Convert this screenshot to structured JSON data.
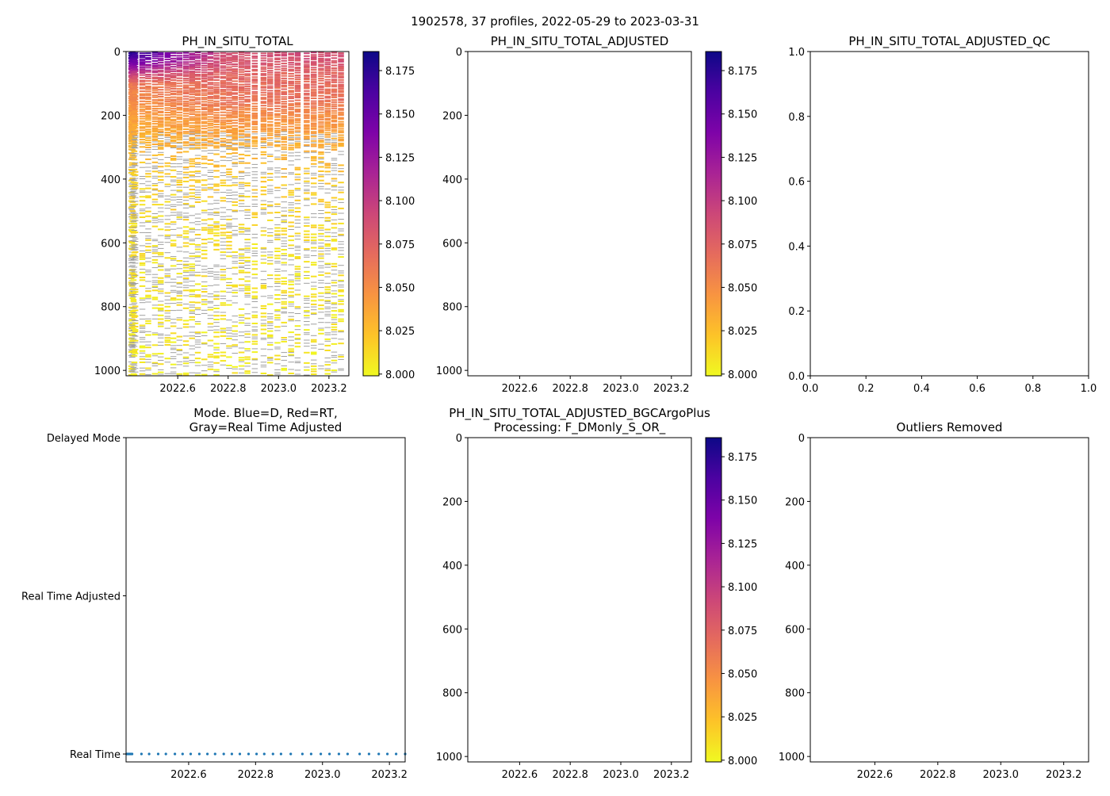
{
  "figure_title": "1902578, 37 profiles, 2022-05-29 to 2023-03-31",
  "colors": {
    "axis": "#000000",
    "mode_points": "#1f77b4",
    "qc_gray": "#a0a0a0"
  },
  "chart_data": [
    {
      "id": "raw",
      "type": "heatmap",
      "title": "PH_IN_SITU_TOTAL",
      "xlim": [
        2022.395,
        2023.279
      ],
      "ylim": [
        1017,
        0
      ],
      "xticks": [
        "2022.6",
        "2022.8",
        "2023.0",
        "2023.2"
      ],
      "xtick_values": [
        2022.6,
        2022.8,
        2023.0,
        2023.2
      ],
      "yticks": [
        "0",
        "200",
        "400",
        "600",
        "800",
        "1000"
      ],
      "ytick_values": [
        0,
        200,
        400,
        600,
        800,
        1000
      ],
      "colorbar": {
        "range": [
          7.999,
          8.186
        ],
        "colormap": "plasma_r",
        "ticks": [
          "8.000",
          "8.025",
          "8.050",
          "8.075",
          "8.100",
          "8.125",
          "8.150",
          "8.175"
        ],
        "tick_values": [
          8.0,
          8.025,
          8.05,
          8.075,
          8.1,
          8.125,
          8.15,
          8.175
        ]
      },
      "profile_dates": [
        2022.415,
        2022.418,
        2022.42,
        2022.424,
        2022.427,
        2022.431,
        2022.459,
        2022.482,
        2022.509,
        2022.532,
        2022.559,
        2022.582,
        2022.606,
        2022.632,
        2022.656,
        2022.679,
        2022.705,
        2022.729,
        2022.753,
        2022.779,
        2022.803,
        2022.826,
        2022.852,
        2022.876,
        2022.905,
        2022.94,
        2022.966,
        2022.995,
        2023.021,
        2023.049,
        2023.075,
        2023.111,
        2023.139,
        2023.168,
        2023.194,
        2023.22,
        2023.247
      ],
      "mean_profile": {
        "depth": [
          0,
          30,
          60,
          100,
          150,
          200,
          280,
          400,
          600,
          1000
        ],
        "ph_early": [
          8.18,
          8.15,
          8.11,
          8.06,
          8.05,
          8.04,
          8.03,
          8.015,
          8.01,
          8.005
        ],
        "ph_late": [
          8.09,
          8.085,
          8.075,
          8.07,
          8.065,
          8.05,
          8.035,
          8.02,
          8.01,
          8.005
        ]
      }
    },
    {
      "id": "adj",
      "type": "heatmap",
      "title": "PH_IN_SITU_TOTAL_ADJUSTED",
      "xlim": [
        2022.395,
        2023.279
      ],
      "ylim": [
        1017,
        0
      ],
      "xticks": [
        "2022.6",
        "2022.8",
        "2023.0",
        "2023.2"
      ],
      "xtick_values": [
        2022.6,
        2022.8,
        2023.0,
        2023.2
      ],
      "yticks": [
        "0",
        "200",
        "400",
        "600",
        "800",
        "1000"
      ],
      "ytick_values": [
        0,
        200,
        400,
        600,
        800,
        1000
      ],
      "colorbar": {
        "range": [
          7.999,
          8.186
        ],
        "colormap": "plasma_r",
        "ticks": [
          "8.000",
          "8.025",
          "8.050",
          "8.075",
          "8.100",
          "8.125",
          "8.150",
          "8.175"
        ],
        "tick_values": [
          8.0,
          8.025,
          8.05,
          8.075,
          8.1,
          8.125,
          8.15,
          8.175
        ]
      }
    },
    {
      "id": "qc",
      "type": "scatter",
      "title": "PH_IN_SITU_TOTAL_ADJUSTED_QC",
      "xlim": [
        0,
        1
      ],
      "ylim": [
        0,
        1
      ],
      "xticks": [
        "0.0",
        "0.2",
        "0.4",
        "0.6",
        "0.8",
        "1.0"
      ],
      "xtick_values": [
        0,
        0.2,
        0.4,
        0.6,
        0.8,
        1.0
      ],
      "yticks": [
        "0.0",
        "0.2",
        "0.4",
        "0.6",
        "0.8",
        "1.0"
      ],
      "ytick_values": [
        0,
        0.2,
        0.4,
        0.6,
        0.8,
        1.0
      ]
    },
    {
      "id": "mode",
      "type": "scatter",
      "title": "Mode. Blue=D, Red=RT,",
      "title2": "Gray=Real Time Adjusted",
      "xlim": [
        2022.413,
        2023.247
      ],
      "ylim": [
        2.05,
        0
      ],
      "xticks": [
        "2022.6",
        "2022.8",
        "2023.0",
        "2023.2"
      ],
      "xtick_values": [
        2022.6,
        2022.8,
        2023.0,
        2023.2
      ],
      "yticks": [
        "Delayed Mode",
        "Real Time Adjusted",
        "Real Time"
      ],
      "ytick_values": [
        0,
        1,
        2
      ],
      "points_mode_value": 2
    },
    {
      "id": "bgc",
      "type": "heatmap",
      "title": "PH_IN_SITU_TOTAL_ADJUSTED_BGCArgoPlus",
      "title2": "Processing: F_DMonly_S_OR_",
      "xlim": [
        2022.395,
        2023.279
      ],
      "ylim": [
        1017,
        0
      ],
      "xticks": [
        "2022.6",
        "2022.8",
        "2023.0",
        "2023.2"
      ],
      "xtick_values": [
        2022.6,
        2022.8,
        2023.0,
        2023.2
      ],
      "yticks": [
        "0",
        "200",
        "400",
        "600",
        "800",
        "1000"
      ],
      "ytick_values": [
        0,
        200,
        400,
        600,
        800,
        1000
      ],
      "colorbar": {
        "range": [
          7.999,
          8.186
        ],
        "colormap": "plasma_r",
        "ticks": [
          "8.000",
          "8.025",
          "8.050",
          "8.075",
          "8.100",
          "8.125",
          "8.150",
          "8.175"
        ],
        "tick_values": [
          8.0,
          8.025,
          8.05,
          8.075,
          8.1,
          8.125,
          8.15,
          8.175
        ]
      }
    },
    {
      "id": "out",
      "type": "heatmap",
      "title": "Outliers Removed",
      "xlim": [
        2022.395,
        2023.279
      ],
      "ylim": [
        1017,
        0
      ],
      "xticks": [
        "2022.6",
        "2022.8",
        "2023.0",
        "2023.2"
      ],
      "xtick_values": [
        2022.6,
        2022.8,
        2023.0,
        2023.2
      ],
      "yticks": [
        "0",
        "200",
        "400",
        "600",
        "800",
        "1000"
      ],
      "ytick_values": [
        0,
        200,
        400,
        600,
        800,
        1000
      ]
    }
  ]
}
